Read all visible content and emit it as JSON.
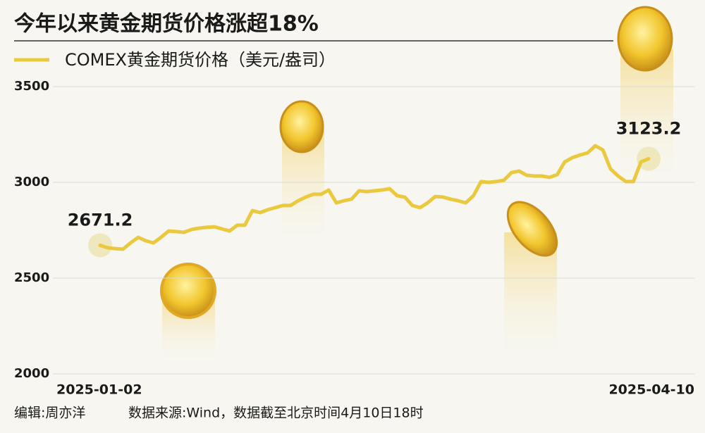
{
  "chart_data": {
    "type": "line",
    "title": "今年以来黄金期货价格涨超18%",
    "editor": "编辑:周亦洋",
    "source": "数据来源:Wind，数据截至北京时间4月10日18时",
    "categories": [
      "2025-01-02",
      null,
      null,
      null,
      null,
      null,
      null,
      null,
      null,
      null,
      null,
      null,
      null,
      null,
      null,
      null,
      null,
      null,
      null,
      null,
      null,
      null,
      null,
      null,
      null,
      null,
      null,
      null,
      null,
      null,
      null,
      null,
      null,
      null,
      null,
      null,
      null,
      null,
      null,
      null,
      null,
      null,
      null,
      null,
      null,
      null,
      null,
      null,
      null,
      null,
      null,
      null,
      null,
      null,
      null,
      null,
      null,
      null,
      null,
      null,
      null,
      null,
      null,
      null,
      null,
      null,
      null,
      null,
      null,
      null,
      null,
      null,
      "2025-04-10"
    ],
    "series": [
      {
        "name": "COMEX黄金期货价格（美元/盎司）",
        "color": "#ebc93f",
        "values": [
          2671.2,
          2658,
          2654,
          2651,
          2684,
          2713,
          2695,
          2684,
          2713,
          2746,
          2743,
          2739,
          2754,
          2761,
          2765,
          2768,
          2757,
          2746,
          2776,
          2776,
          2853,
          2842,
          2857,
          2868,
          2879,
          2879,
          2904,
          2923,
          2938,
          2938,
          2960,
          2893,
          2904,
          2912,
          2956,
          2952,
          2956,
          2960,
          2967,
          2930,
          2923,
          2879,
          2868,
          2893,
          2926,
          2923,
          2912,
          2904,
          2893,
          2930,
          3004,
          3000,
          3004,
          3011,
          3051,
          3059,
          3037,
          3033,
          3033,
          3026,
          3040,
          3107,
          3129,
          3143,
          3154,
          3191,
          3169,
          3070,
          3033,
          3004,
          3004,
          3107,
          3123.2
        ]
      }
    ],
    "ylim": [
      2000,
      3500
    ],
    "yticks": [
      2000,
      2500,
      3000,
      3500
    ],
    "grid": true
  }
}
